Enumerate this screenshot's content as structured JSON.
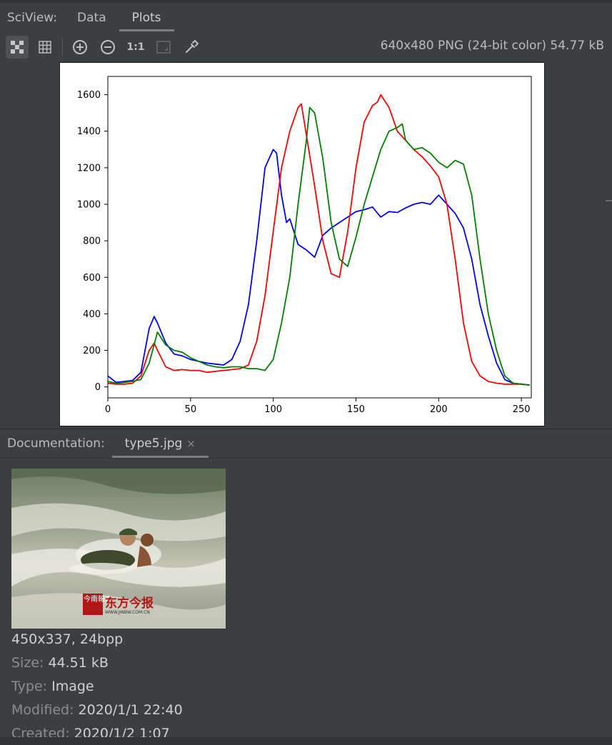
{
  "sciview": {
    "title": "SciView:",
    "tabs": [
      {
        "label": "Data"
      },
      {
        "label": "Plots"
      }
    ],
    "active_tab": "Plots",
    "image_info": "640x480 PNG (24-bit color) 54.77 kB",
    "toolbar": {
      "buttons": [
        "checkerboard-icon",
        "grid-icon",
        "zoom-in-icon",
        "zoom-out-icon",
        "actual-size-icon",
        "fit-icon",
        "color-picker-icon"
      ],
      "actual_size_label": "1:1"
    }
  },
  "chart_data": {
    "type": "line",
    "title": "",
    "xlabel": "",
    "ylabel": "",
    "xlim": [
      0,
      256
    ],
    "ylim": [
      -60,
      1700
    ],
    "xticks": [
      0,
      50,
      100,
      150,
      200,
      250
    ],
    "yticks": [
      0,
      200,
      400,
      600,
      800,
      1000,
      1200,
      1400,
      1600
    ],
    "grid": false,
    "series": [
      {
        "color": "#0000ff",
        "x": [
          0,
          5,
          10,
          15,
          20,
          25,
          28,
          30,
          35,
          40,
          45,
          50,
          55,
          60,
          65,
          70,
          75,
          80,
          85,
          90,
          95,
          100,
          102,
          105,
          108,
          110,
          115,
          120,
          125,
          130,
          135,
          140,
          145,
          150,
          155,
          160,
          165,
          170,
          175,
          180,
          185,
          190,
          195,
          200,
          205,
          210,
          215,
          220,
          225,
          230,
          235,
          240,
          245,
          250,
          255
        ],
        "y": [
          60,
          25,
          30,
          35,
          80,
          320,
          385,
          350,
          240,
          180,
          170,
          150,
          140,
          130,
          125,
          120,
          150,
          250,
          450,
          800,
          1200,
          1300,
          1280,
          1050,
          900,
          920,
          780,
          750,
          710,
          830,
          870,
          900,
          930,
          960,
          970,
          985,
          930,
          960,
          955,
          980,
          1000,
          1010,
          1000,
          1050,
          1000,
          950,
          870,
          700,
          450,
          280,
          130,
          40,
          20,
          15,
          10
        ]
      },
      {
        "color": "#ff0000",
        "x": [
          0,
          5,
          10,
          15,
          20,
          25,
          28,
          30,
          35,
          40,
          45,
          50,
          55,
          60,
          65,
          70,
          75,
          80,
          85,
          90,
          95,
          100,
          105,
          110,
          115,
          117,
          120,
          125,
          130,
          135,
          140,
          145,
          150,
          155,
          160,
          163,
          165,
          170,
          175,
          180,
          185,
          190,
          195,
          200,
          205,
          210,
          215,
          220,
          225,
          230,
          235,
          240,
          245,
          250,
          255
        ],
        "y": [
          20,
          15,
          15,
          20,
          60,
          200,
          240,
          200,
          110,
          90,
          95,
          90,
          90,
          80,
          85,
          90,
          95,
          100,
          120,
          250,
          500,
          850,
          1200,
          1400,
          1530,
          1550,
          1380,
          1100,
          800,
          620,
          600,
          850,
          1200,
          1450,
          1540,
          1560,
          1600,
          1530,
          1400,
          1350,
          1300,
          1260,
          1210,
          1150,
          1000,
          700,
          350,
          140,
          60,
          30,
          20,
          15,
          15,
          15,
          10
        ]
      },
      {
        "color": "#008000",
        "x": [
          0,
          5,
          10,
          15,
          20,
          25,
          30,
          35,
          40,
          45,
          50,
          55,
          60,
          65,
          70,
          75,
          80,
          85,
          90,
          95,
          100,
          105,
          110,
          115,
          120,
          122,
          125,
          130,
          135,
          140,
          145,
          150,
          155,
          160,
          165,
          170,
          175,
          178,
          180,
          185,
          190,
          195,
          200,
          205,
          210,
          215,
          220,
          225,
          230,
          235,
          240,
          245,
          250,
          255
        ],
        "y": [
          30,
          20,
          25,
          30,
          40,
          130,
          300,
          230,
          200,
          190,
          160,
          140,
          120,
          110,
          105,
          110,
          110,
          100,
          100,
          90,
          150,
          350,
          600,
          1000,
          1350,
          1530,
          1500,
          1250,
          900,
          700,
          660,
          820,
          1000,
          1150,
          1300,
          1400,
          1420,
          1440,
          1350,
          1300,
          1310,
          1280,
          1230,
          1200,
          1240,
          1220,
          1050,
          700,
          400,
          200,
          60,
          20,
          15,
          10
        ]
      }
    ]
  },
  "documentation": {
    "title": "Documentation:",
    "tab_label": "type5.jpg",
    "close_glyph": "×",
    "image_overlay_text": "东方今报",
    "image_overlay_subtext": "WWW.JINBW.COM.CN",
    "image_stamp_text": "今南報方",
    "dims": "450x337, 24bpp",
    "size_key": "Size:",
    "size_value": "44.51 kB",
    "type_key": "Type:",
    "type_value": "Image",
    "modified_key": "Modified:",
    "modified_value": "2020/1/1 22:40",
    "created_key": "Created:",
    "created_value": "2020/1/2 1:07"
  }
}
